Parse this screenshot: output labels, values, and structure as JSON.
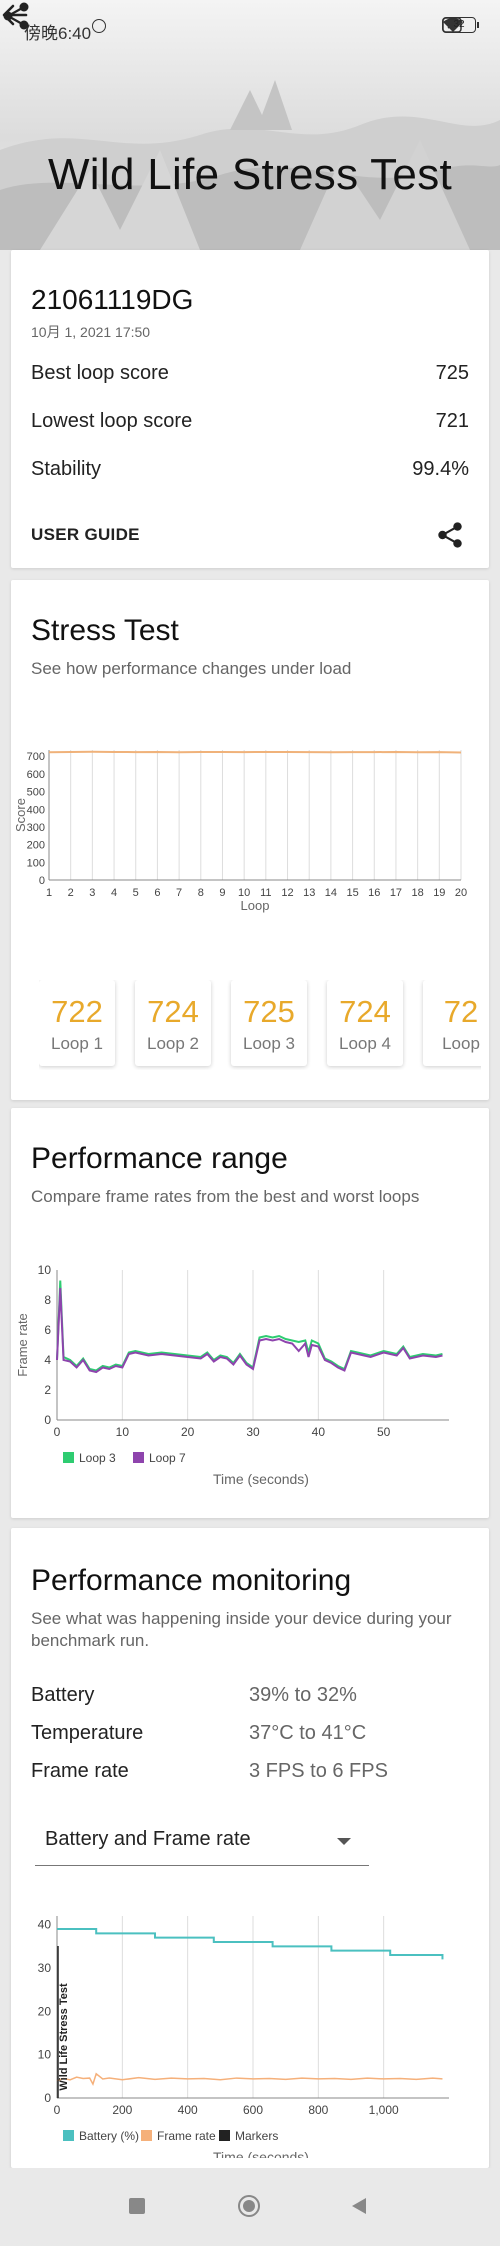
{
  "status_bar": {
    "time": "傍晚6:40",
    "battery": "32"
  },
  "header": {
    "title": "Wild Life Stress Test"
  },
  "summary": {
    "device": "21061119DG",
    "date": "10月 1, 2021 17:50",
    "rows": [
      {
        "label": "Best loop score",
        "value": "725"
      },
      {
        "label": "Lowest loop score",
        "value": "721"
      },
      {
        "label": "Stability",
        "value": "99.4%"
      }
    ],
    "guide_label": "USER GUIDE"
  },
  "stress_test": {
    "title": "Stress Test",
    "subtitle": "See how performance changes under load",
    "loops": [
      {
        "value": "722",
        "label": "Loop 1"
      },
      {
        "value": "724",
        "label": "Loop 2"
      },
      {
        "value": "725",
        "label": "Loop 3"
      },
      {
        "value": "724",
        "label": "Loop 4"
      },
      {
        "value": "72",
        "label": "Loop"
      }
    ]
  },
  "performance_range": {
    "title": "Performance range",
    "subtitle": "Compare frame rates from the best and worst loops"
  },
  "performance_monitoring": {
    "title": "Performance monitoring",
    "subtitle": "See what was happening inside your device during your benchmark run.",
    "rows": [
      {
        "label": "Battery",
        "value": "39% to 32%"
      },
      {
        "label": "Temperature",
        "value": "37°C to 41°C"
      },
      {
        "label": "Frame rate",
        "value": "3 FPS to 6 FPS"
      }
    ],
    "dropdown": "Battery and Frame rate"
  },
  "chart_data": [
    {
      "type": "line",
      "ylabel": "Score",
      "xlabel": "Loop",
      "ylim": [
        0,
        700
      ],
      "yticks": [
        0,
        100,
        200,
        300,
        400,
        500,
        600,
        700
      ],
      "x": [
        1,
        2,
        3,
        4,
        5,
        6,
        7,
        8,
        9,
        10,
        11,
        12,
        13,
        14,
        15,
        16,
        17,
        18,
        19,
        20
      ],
      "series": [
        {
          "values": [
            722,
            724,
            725,
            724,
            723,
            724,
            722,
            724,
            724,
            723,
            724,
            724,
            723,
            722,
            723,
            723,
            724,
            722,
            723,
            721
          ],
          "color": "#f0b27a"
        }
      ],
      "grid": "vertical"
    },
    {
      "type": "line",
      "ylabel": "Frame rate",
      "xlabel": "Time (seconds)",
      "ylim": [
        0,
        10
      ],
      "yticks": [
        0,
        2,
        4,
        6,
        8,
        10
      ],
      "xticks": [
        0,
        10,
        20,
        30,
        40,
        50
      ],
      "legend": "bottom-left",
      "series": [
        {
          "name": "Loop 3",
          "color": "#2ecc71",
          "x": [
            0,
            0.5,
            1,
            2,
            3,
            4,
            5,
            6,
            7,
            8,
            9,
            10,
            11,
            12,
            14,
            16,
            18,
            20,
            22,
            23,
            24,
            25,
            26,
            27,
            28,
            29,
            30,
            31,
            32,
            33,
            34,
            35,
            36,
            37,
            38,
            38.5,
            39,
            40,
            41,
            42,
            43,
            44,
            45,
            46,
            47,
            48,
            50,
            52,
            53,
            54,
            56,
            58,
            59
          ],
          "y": [
            4,
            9.3,
            4.2,
            4.0,
            3.6,
            4.1,
            3.4,
            3.3,
            3.6,
            3.5,
            3.7,
            3.6,
            4.5,
            4.6,
            4.4,
            4.5,
            4.4,
            4.3,
            4.2,
            4.5,
            4.0,
            4.3,
            4.2,
            3.8,
            4.4,
            3.8,
            3.5,
            5.5,
            5.6,
            5.5,
            5.6,
            5.4,
            5.3,
            5.2,
            5.3,
            4.5,
            5.3,
            5.1,
            4.1,
            3.9,
            3.6,
            3.4,
            4.6,
            4.5,
            4.4,
            4.3,
            4.6,
            4.4,
            4.9,
            4.2,
            4.4,
            4.3,
            4.4
          ]
        },
        {
          "name": "Loop 7",
          "color": "#8e44ad",
          "x": [
            0,
            0.5,
            1,
            2,
            3,
            4,
            5,
            6,
            7,
            8,
            9,
            10,
            11,
            12,
            14,
            16,
            18,
            20,
            22,
            23,
            24,
            25,
            26,
            27,
            28,
            29,
            30,
            31,
            32,
            33,
            34,
            35,
            36,
            37,
            38,
            38.5,
            39,
            40,
            41,
            42,
            43,
            44,
            45,
            46,
            47,
            48,
            50,
            52,
            53,
            54,
            56,
            58,
            59
          ],
          "y": [
            4,
            8.8,
            4.0,
            3.9,
            3.5,
            4.0,
            3.3,
            3.2,
            3.5,
            3.4,
            3.6,
            3.5,
            4.4,
            4.5,
            4.3,
            4.4,
            4.3,
            4.2,
            4.1,
            4.4,
            3.9,
            4.2,
            4.1,
            3.7,
            4.3,
            3.7,
            3.4,
            5.3,
            5.4,
            5.3,
            5.4,
            5.2,
            5.1,
            4.6,
            5.1,
            4.2,
            5.0,
            4.9,
            4.0,
            3.8,
            3.5,
            3.3,
            4.5,
            4.4,
            4.3,
            4.2,
            4.5,
            4.3,
            4.8,
            4.1,
            4.3,
            4.2,
            4.3
          ]
        }
      ]
    },
    {
      "type": "line",
      "xlabel": "Time (seconds)",
      "annotation": "Wild Life Stress Test",
      "ylim": [
        0,
        40
      ],
      "yticks": [
        0,
        10,
        20,
        30,
        40
      ],
      "xticks": [
        0,
        200,
        400,
        600,
        800,
        1000
      ],
      "xtick_labels": [
        "0",
        "200",
        "400",
        "600",
        "800",
        "1,000"
      ],
      "legend": "bottom-left",
      "series": [
        {
          "name": "Battery (%)",
          "color": "#4bc0c0",
          "x": [
            0,
            60,
            120,
            180,
            240,
            300,
            360,
            420,
            480,
            540,
            600,
            660,
            720,
            780,
            840,
            900,
            960,
            1020,
            1080,
            1140,
            1180
          ],
          "y": [
            39,
            39,
            38,
            38,
            38,
            37,
            37,
            37,
            36,
            36,
            36,
            35,
            35,
            35,
            34,
            34,
            34,
            33,
            33,
            33,
            32
          ]
        },
        {
          "name": "Frame rate",
          "color": "#f5b07a",
          "x": [
            0,
            20,
            40,
            60,
            80,
            100,
            110,
            120,
            140,
            160,
            200,
            250,
            300,
            350,
            400,
            450,
            500,
            550,
            600,
            650,
            700,
            750,
            800,
            850,
            900,
            950,
            1000,
            1050,
            1100,
            1150,
            1180
          ],
          "y": [
            4,
            4.5,
            4.2,
            4.8,
            4.5,
            4.6,
            3.2,
            5.6,
            4.4,
            4.6,
            4.2,
            4.7,
            4.3,
            4.6,
            4.4,
            4.5,
            4.2,
            4.6,
            4.4,
            4.5,
            4.3,
            4.6,
            4.4,
            4.5,
            4.3,
            4.6,
            4.4,
            4.5,
            4.3,
            4.6,
            4.4
          ]
        },
        {
          "name": "Markers",
          "color": "#222222"
        }
      ]
    }
  ]
}
